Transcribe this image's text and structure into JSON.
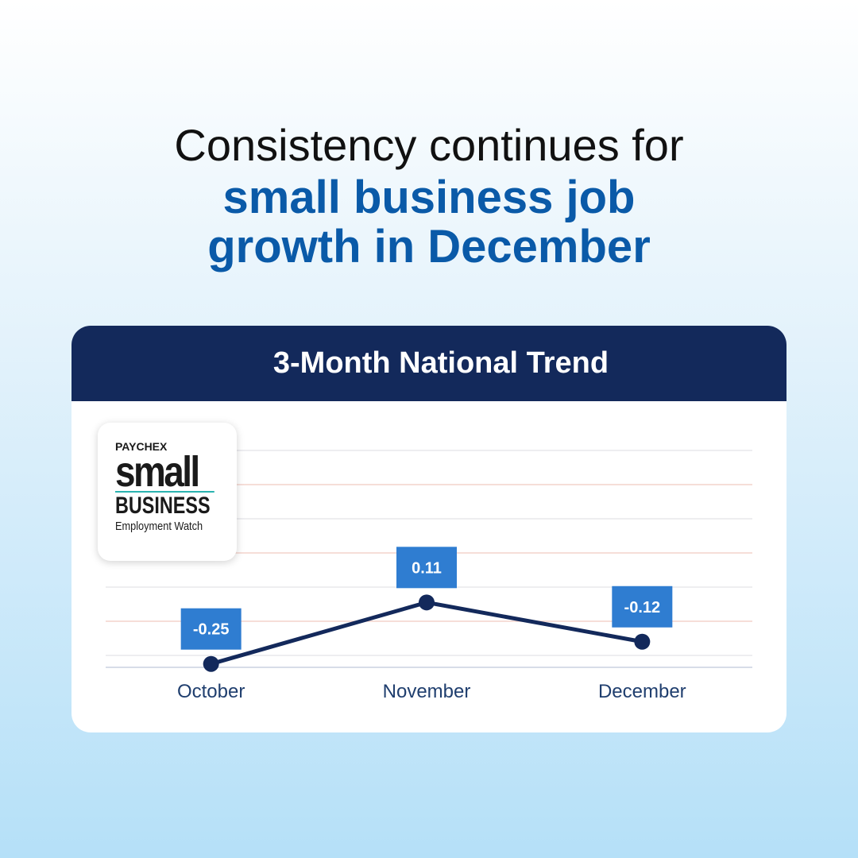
{
  "chart_data": {
    "type": "line",
    "title": "Consistency continues for",
    "subtitle": "small business job growth in December",
    "header": "3-Month National Trend",
    "logo": {
      "brand": "PAYCHEX",
      "line1": "small",
      "line2": "BUSINESS",
      "line3": "Employment Watch"
    },
    "categories": [
      "October",
      "November",
      "December"
    ],
    "series": [
      {
        "color": "#13295b",
        "label_color": "#2f7dd1",
        "values": [
          -0.25,
          0.11,
          -0.12
        ]
      }
    ],
    "ylim": [
      -0.27,
      1.0
    ],
    "yticks": [
      -0.2,
      0,
      0.2,
      0.4,
      0.6,
      0.8,
      1.0
    ],
    "grid": true
  }
}
